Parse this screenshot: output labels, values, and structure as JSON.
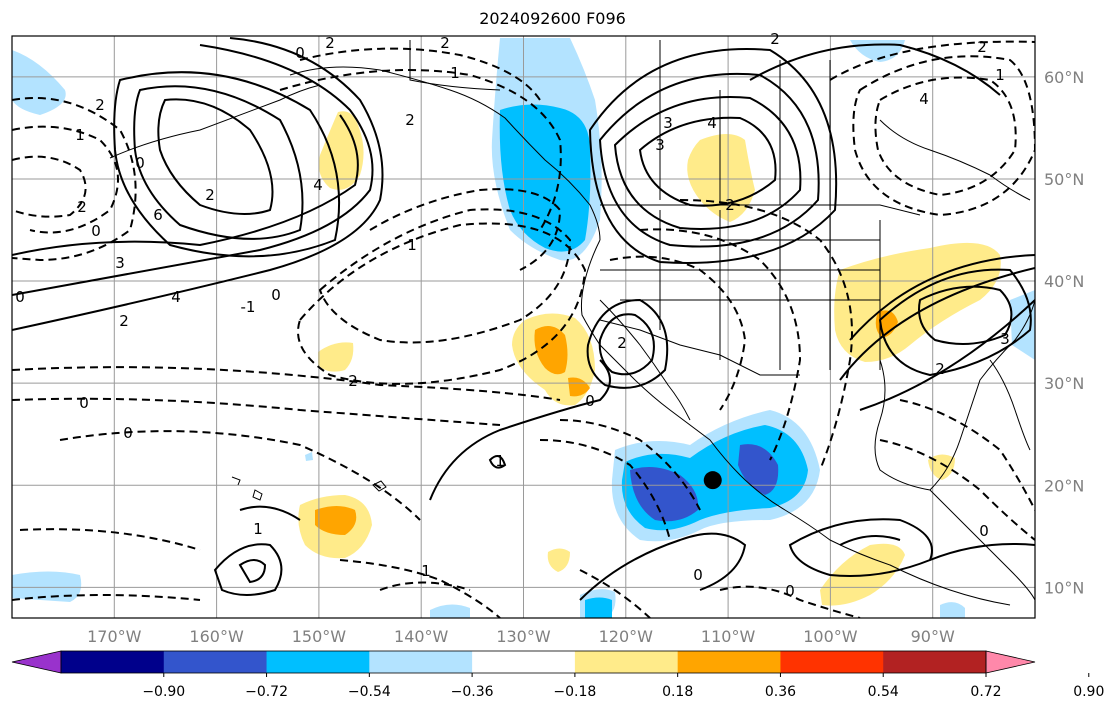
{
  "title": "2024092600 F096",
  "map": {
    "projection": "plate-carree",
    "lon_range": [
      -180,
      -80
    ],
    "lat_range": [
      7,
      64
    ],
    "longitude_labels": [
      "170°W",
      "160°W",
      "150°W",
      "140°W",
      "130°W",
      "120°W",
      "110°W",
      "100°W",
      "90°W"
    ],
    "latitude_labels": [
      "60°N",
      "50°N",
      "40°N",
      "30°N",
      "20°N",
      "10°N"
    ],
    "gridlines": true,
    "marker": {
      "lon": -111.5,
      "lat": 20.5,
      "shape": "black-dot"
    }
  },
  "contour_labels": [
    "2",
    "0",
    "1",
    "2",
    "2",
    "2",
    "1",
    "2",
    "0",
    "4",
    "1",
    "6",
    "3",
    "2",
    "4",
    "0",
    "3",
    "2",
    "3",
    "4",
    "2",
    "1",
    "0",
    "-1",
    "2",
    "4",
    "2",
    "0",
    "2",
    "0",
    "2",
    "3",
    "2",
    "0",
    "1",
    "1",
    "1",
    "0",
    "0",
    "0",
    "0"
  ],
  "colorbar": {
    "tick_labels": [
      "−0.90",
      "−0.72",
      "−0.54",
      "−0.36",
      "−0.18",
      "0.18",
      "0.36",
      "0.54",
      "0.72",
      "0.90"
    ],
    "colors": [
      "#9932cc",
      "#00008b",
      "#3355cc",
      "#00bfff",
      "#b3e3ff",
      "#ffffff",
      "#ffeb8a",
      "#ffa500",
      "#ff3300",
      "#b22222",
      "#ff88aa"
    ],
    "extend": "both"
  }
}
